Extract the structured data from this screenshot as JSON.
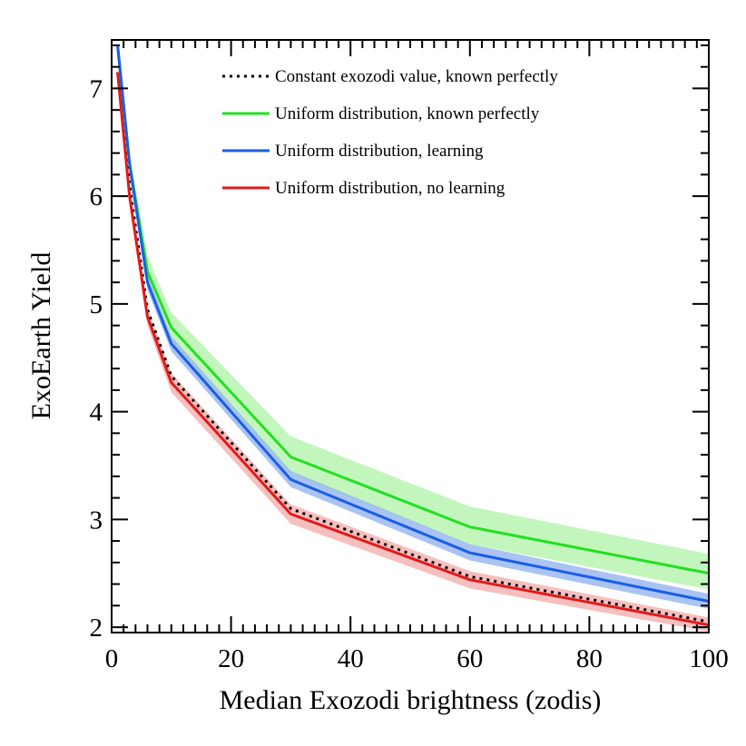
{
  "chart_data": {
    "type": "line",
    "title": "",
    "xlabel": "Median Exozodi brightness (zodis)",
    "ylabel": "ExoEarth Yield",
    "xlim": [
      0,
      100
    ],
    "ylim": [
      1.95,
      7.45
    ],
    "x_ticks": [
      0,
      20,
      40,
      60,
      80,
      100
    ],
    "y_ticks": [
      2,
      3,
      4,
      5,
      6,
      7
    ],
    "x_tick_labels": [
      "0",
      "20",
      "40",
      "60",
      "80",
      "100"
    ],
    "y_tick_labels": [
      "2",
      "3",
      "4",
      "5",
      "6",
      "7"
    ],
    "x_minor_step": 2,
    "y_minor_step": 0.2,
    "grid": false,
    "legend_position": "top-right",
    "x": [
      1,
      3,
      6,
      10,
      30,
      60,
      100
    ],
    "series": [
      {
        "name": "Constant exozodi value, known perfectly",
        "color": "#000000",
        "style": "dotted",
        "values": [
          7.15,
          6.1,
          4.95,
          4.33,
          3.1,
          2.47,
          2.05
        ]
      },
      {
        "name": "Uniform distribution, known perfectly",
        "color": "#22e022",
        "band_color": "#b8f5b0",
        "style": "solid",
        "values": [
          7.4,
          6.3,
          5.3,
          4.78,
          3.58,
          2.93,
          2.5
        ],
        "lower": [
          7.35,
          6.18,
          5.15,
          4.65,
          3.42,
          2.77,
          2.35
        ],
        "upper": [
          7.46,
          6.42,
          5.45,
          4.92,
          3.77,
          3.12,
          2.68
        ]
      },
      {
        "name": "Uniform distribution, learning",
        "color": "#1a5ee6",
        "band_color": "#9ab8f0",
        "style": "solid",
        "values": [
          7.4,
          6.3,
          5.2,
          4.63,
          3.37,
          2.69,
          2.24
        ],
        "lower": [
          7.36,
          6.24,
          5.13,
          4.56,
          3.3,
          2.62,
          2.17
        ],
        "upper": [
          7.44,
          6.36,
          5.27,
          4.7,
          3.45,
          2.77,
          2.31
        ]
      },
      {
        "name": "Uniform distribution, no learning",
        "color": "#e31a1a",
        "band_color": "#f5b4b4",
        "style": "solid",
        "values": [
          7.15,
          6.0,
          4.88,
          4.27,
          3.05,
          2.44,
          2.02
        ],
        "lower": [
          7.08,
          5.92,
          4.8,
          4.18,
          2.96,
          2.36,
          1.96
        ],
        "upper": [
          7.22,
          6.08,
          4.96,
          4.36,
          3.14,
          2.52,
          2.09
        ]
      }
    ]
  }
}
